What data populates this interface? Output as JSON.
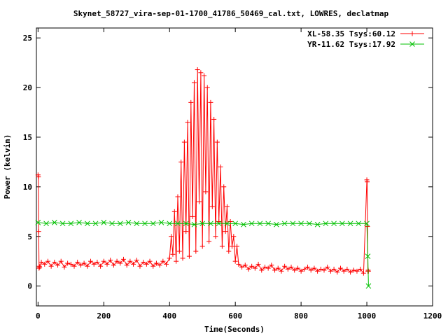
{
  "chart_data": {
    "type": "line",
    "title": "Skynet_58727_vira-sep-01-1700_41786_50469_cal.txt, LOWRES, declatmap",
    "xlabel": "Time(Seconds)",
    "ylabel": "Power (kelvin)",
    "xlim": [
      -5,
      1200
    ],
    "ylim": [
      -2,
      26
    ],
    "xticks": [
      0,
      200,
      400,
      600,
      800,
      1000,
      1200
    ],
    "yticks": [
      0,
      5,
      10,
      15,
      20,
      25
    ],
    "grid": false,
    "legend_position": "top-right",
    "series": [
      {
        "name": "XL-58.35 Tsys:60.12",
        "color": "#ff0000",
        "marker": "plus",
        "x": [
          0,
          1,
          2,
          3,
          4,
          5,
          10,
          20,
          30,
          40,
          50,
          60,
          70,
          80,
          90,
          100,
          110,
          120,
          130,
          140,
          150,
          160,
          170,
          180,
          190,
          200,
          210,
          220,
          230,
          240,
          250,
          260,
          270,
          280,
          290,
          300,
          310,
          320,
          330,
          340,
          350,
          360,
          370,
          380,
          390,
          400,
          405,
          410,
          415,
          420,
          425,
          430,
          435,
          440,
          445,
          450,
          455,
          460,
          465,
          470,
          475,
          480,
          485,
          490,
          495,
          500,
          505,
          510,
          515,
          520,
          525,
          530,
          535,
          540,
          545,
          550,
          555,
          560,
          565,
          570,
          575,
          580,
          585,
          590,
          595,
          600,
          605,
          610,
          620,
          630,
          640,
          650,
          660,
          670,
          680,
          690,
          700,
          710,
          720,
          730,
          740,
          750,
          760,
          770,
          780,
          790,
          800,
          810,
          820,
          830,
          840,
          850,
          860,
          870,
          880,
          890,
          900,
          910,
          920,
          930,
          940,
          950,
          960,
          970,
          980,
          990,
          1000,
          1001,
          1002,
          1003,
          1004,
          1005
        ],
        "y": [
          11.2,
          11.0,
          5.5,
          1.8,
          2.0,
          1.9,
          2.4,
          2.2,
          2.5,
          2.0,
          2.4,
          2.1,
          2.5,
          1.9,
          2.3,
          2.2,
          2.0,
          2.4,
          2.1,
          2.3,
          2.0,
          2.5,
          2.2,
          2.4,
          2.0,
          2.5,
          2.2,
          2.6,
          2.1,
          2.5,
          2.3,
          2.7,
          2.1,
          2.5,
          2.2,
          2.6,
          2.0,
          2.4,
          2.2,
          2.5,
          2.0,
          2.3,
          2.1,
          2.5,
          2.2,
          2.8,
          5.0,
          3.2,
          7.5,
          2.5,
          9.0,
          3.5,
          12.5,
          2.8,
          14.5,
          5.5,
          16.5,
          3.0,
          18.5,
          7.0,
          20.5,
          3.5,
          21.8,
          8.5,
          21.5,
          4.0,
          21.2,
          9.5,
          20.0,
          4.5,
          18.5,
          8.0,
          16.8,
          5.0,
          14.5,
          6.5,
          12.0,
          4.0,
          10.0,
          5.5,
          8.0,
          3.5,
          6.5,
          4.0,
          5.0,
          2.5,
          4.0,
          2.2,
          1.9,
          2.1,
          1.7,
          2.0,
          1.8,
          2.2,
          1.6,
          1.9,
          1.8,
          2.1,
          1.6,
          1.8,
          1.5,
          2.0,
          1.7,
          1.9,
          1.6,
          1.8,
          1.5,
          1.7,
          1.9,
          1.6,
          1.8,
          1.5,
          1.7,
          1.6,
          1.9,
          1.5,
          1.7,
          1.4,
          1.8,
          1.5,
          1.7,
          1.4,
          1.6,
          1.5,
          1.7,
          1.3,
          10.7,
          10.5,
          6.0,
          1.5,
          1.6,
          1.5
        ]
      },
      {
        "name": "YR-11.62 Tsys:17.92",
        "color": "#00c000",
        "marker": "cross",
        "x": [
          0,
          25,
          50,
          75,
          100,
          125,
          150,
          175,
          200,
          225,
          250,
          275,
          300,
          325,
          350,
          375,
          400,
          425,
          450,
          475,
          500,
          525,
          550,
          575,
          600,
          625,
          650,
          675,
          700,
          725,
          750,
          775,
          800,
          825,
          850,
          875,
          900,
          925,
          950,
          975,
          1000,
          1003,
          1005
        ],
        "y": [
          6.4,
          6.3,
          6.4,
          6.3,
          6.3,
          6.4,
          6.3,
          6.3,
          6.4,
          6.3,
          6.3,
          6.4,
          6.3,
          6.3,
          6.3,
          6.4,
          6.3,
          6.3,
          6.3,
          6.2,
          6.3,
          6.3,
          6.3,
          6.3,
          6.3,
          6.2,
          6.3,
          6.3,
          6.3,
          6.2,
          6.3,
          6.3,
          6.3,
          6.3,
          6.2,
          6.3,
          6.3,
          6.3,
          6.3,
          6.3,
          6.3,
          3.0,
          0.0
        ]
      }
    ]
  }
}
